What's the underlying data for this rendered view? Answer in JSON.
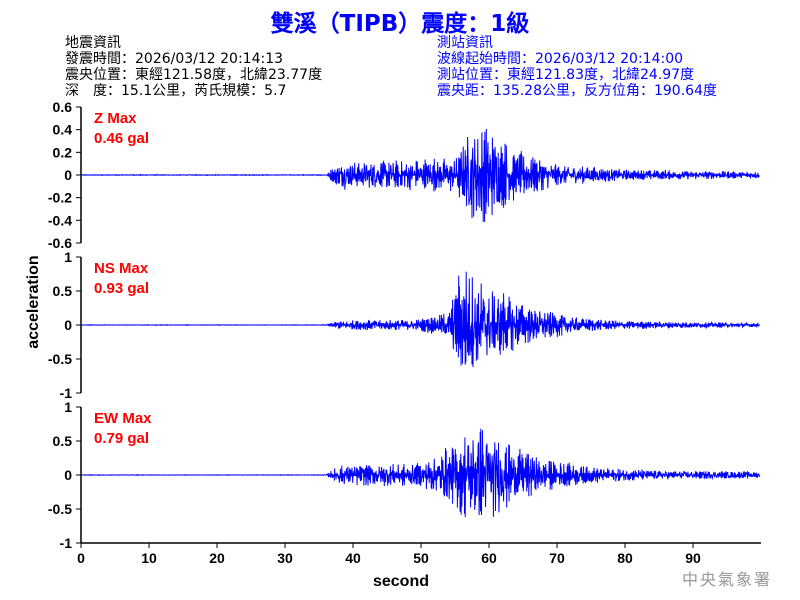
{
  "title": "雙溪（TIPB）震度：1級",
  "quake_info": {
    "heading": "地震資訊",
    "lines": [
      "發震時間：2026/03/12 20:14:13",
      "震央位置：東經121.58度，北緯23.77度",
      "深　度：15.1公里，芮氏規模：5.7"
    ]
  },
  "station_info": {
    "heading": "測站資訊",
    "lines": [
      "波線起始時間：2026/03/12 20:14:00",
      "測站位置：東經121.83度，北緯24.97度",
      "震央距：135.28公里，反方位角：190.64度"
    ]
  },
  "watermark": "中央氣象署",
  "colors": {
    "title": "#0000ff",
    "trace": "#0000ff",
    "max_label": "#ff0000",
    "axis": "#000000",
    "watermark": "#999999"
  },
  "chart_data": {
    "type": "line",
    "xlabel": "second",
    "ylabel": "acceleration",
    "xlim": [
      0,
      100
    ],
    "x_ticks": [
      "0",
      "10",
      "20",
      "30",
      "40",
      "50",
      "60",
      "70",
      "80",
      "90"
    ],
    "grid": false,
    "panels": [
      {
        "component": "Z",
        "max_label": "Z Max",
        "max_value": "0.46 gal",
        "ylim": [
          -0.6,
          0.6
        ],
        "y_ticks": [
          "0.6",
          "0.4",
          "0.2",
          "0",
          "-0.2",
          "-0.4",
          "-0.6"
        ],
        "envelope": {
          "t": [
            0,
            36,
            38,
            45,
            55,
            57,
            60,
            63,
            70,
            80,
            100
          ],
          "amp": [
            0.003,
            0.003,
            0.13,
            0.13,
            0.16,
            0.4,
            0.46,
            0.25,
            0.1,
            0.05,
            0.03
          ]
        }
      },
      {
        "component": "NS",
        "max_label": "NS Max",
        "max_value": "0.93 gal",
        "ylim": [
          -1,
          1
        ],
        "y_ticks": [
          "1",
          "0.5",
          "0",
          "-0.5",
          "-1"
        ],
        "envelope": {
          "t": [
            0,
            36,
            38,
            50,
            54,
            56,
            58,
            62,
            66,
            72,
            80,
            100
          ],
          "amp": [
            0.003,
            0.003,
            0.07,
            0.09,
            0.2,
            0.93,
            0.7,
            0.5,
            0.3,
            0.12,
            0.06,
            0.03
          ]
        }
      },
      {
        "component": "EW",
        "max_label": "EW Max",
        "max_value": "0.79 gal",
        "ylim": [
          -1,
          1
        ],
        "y_ticks": [
          "1",
          "0.5",
          "0",
          "-0.5",
          "-1"
        ],
        "envelope": {
          "t": [
            0,
            36,
            38,
            50,
            53,
            56,
            59,
            63,
            68,
            75,
            85,
            100
          ],
          "amp": [
            0.003,
            0.003,
            0.15,
            0.18,
            0.35,
            0.6,
            0.79,
            0.45,
            0.25,
            0.12,
            0.07,
            0.05
          ]
        }
      }
    ]
  }
}
